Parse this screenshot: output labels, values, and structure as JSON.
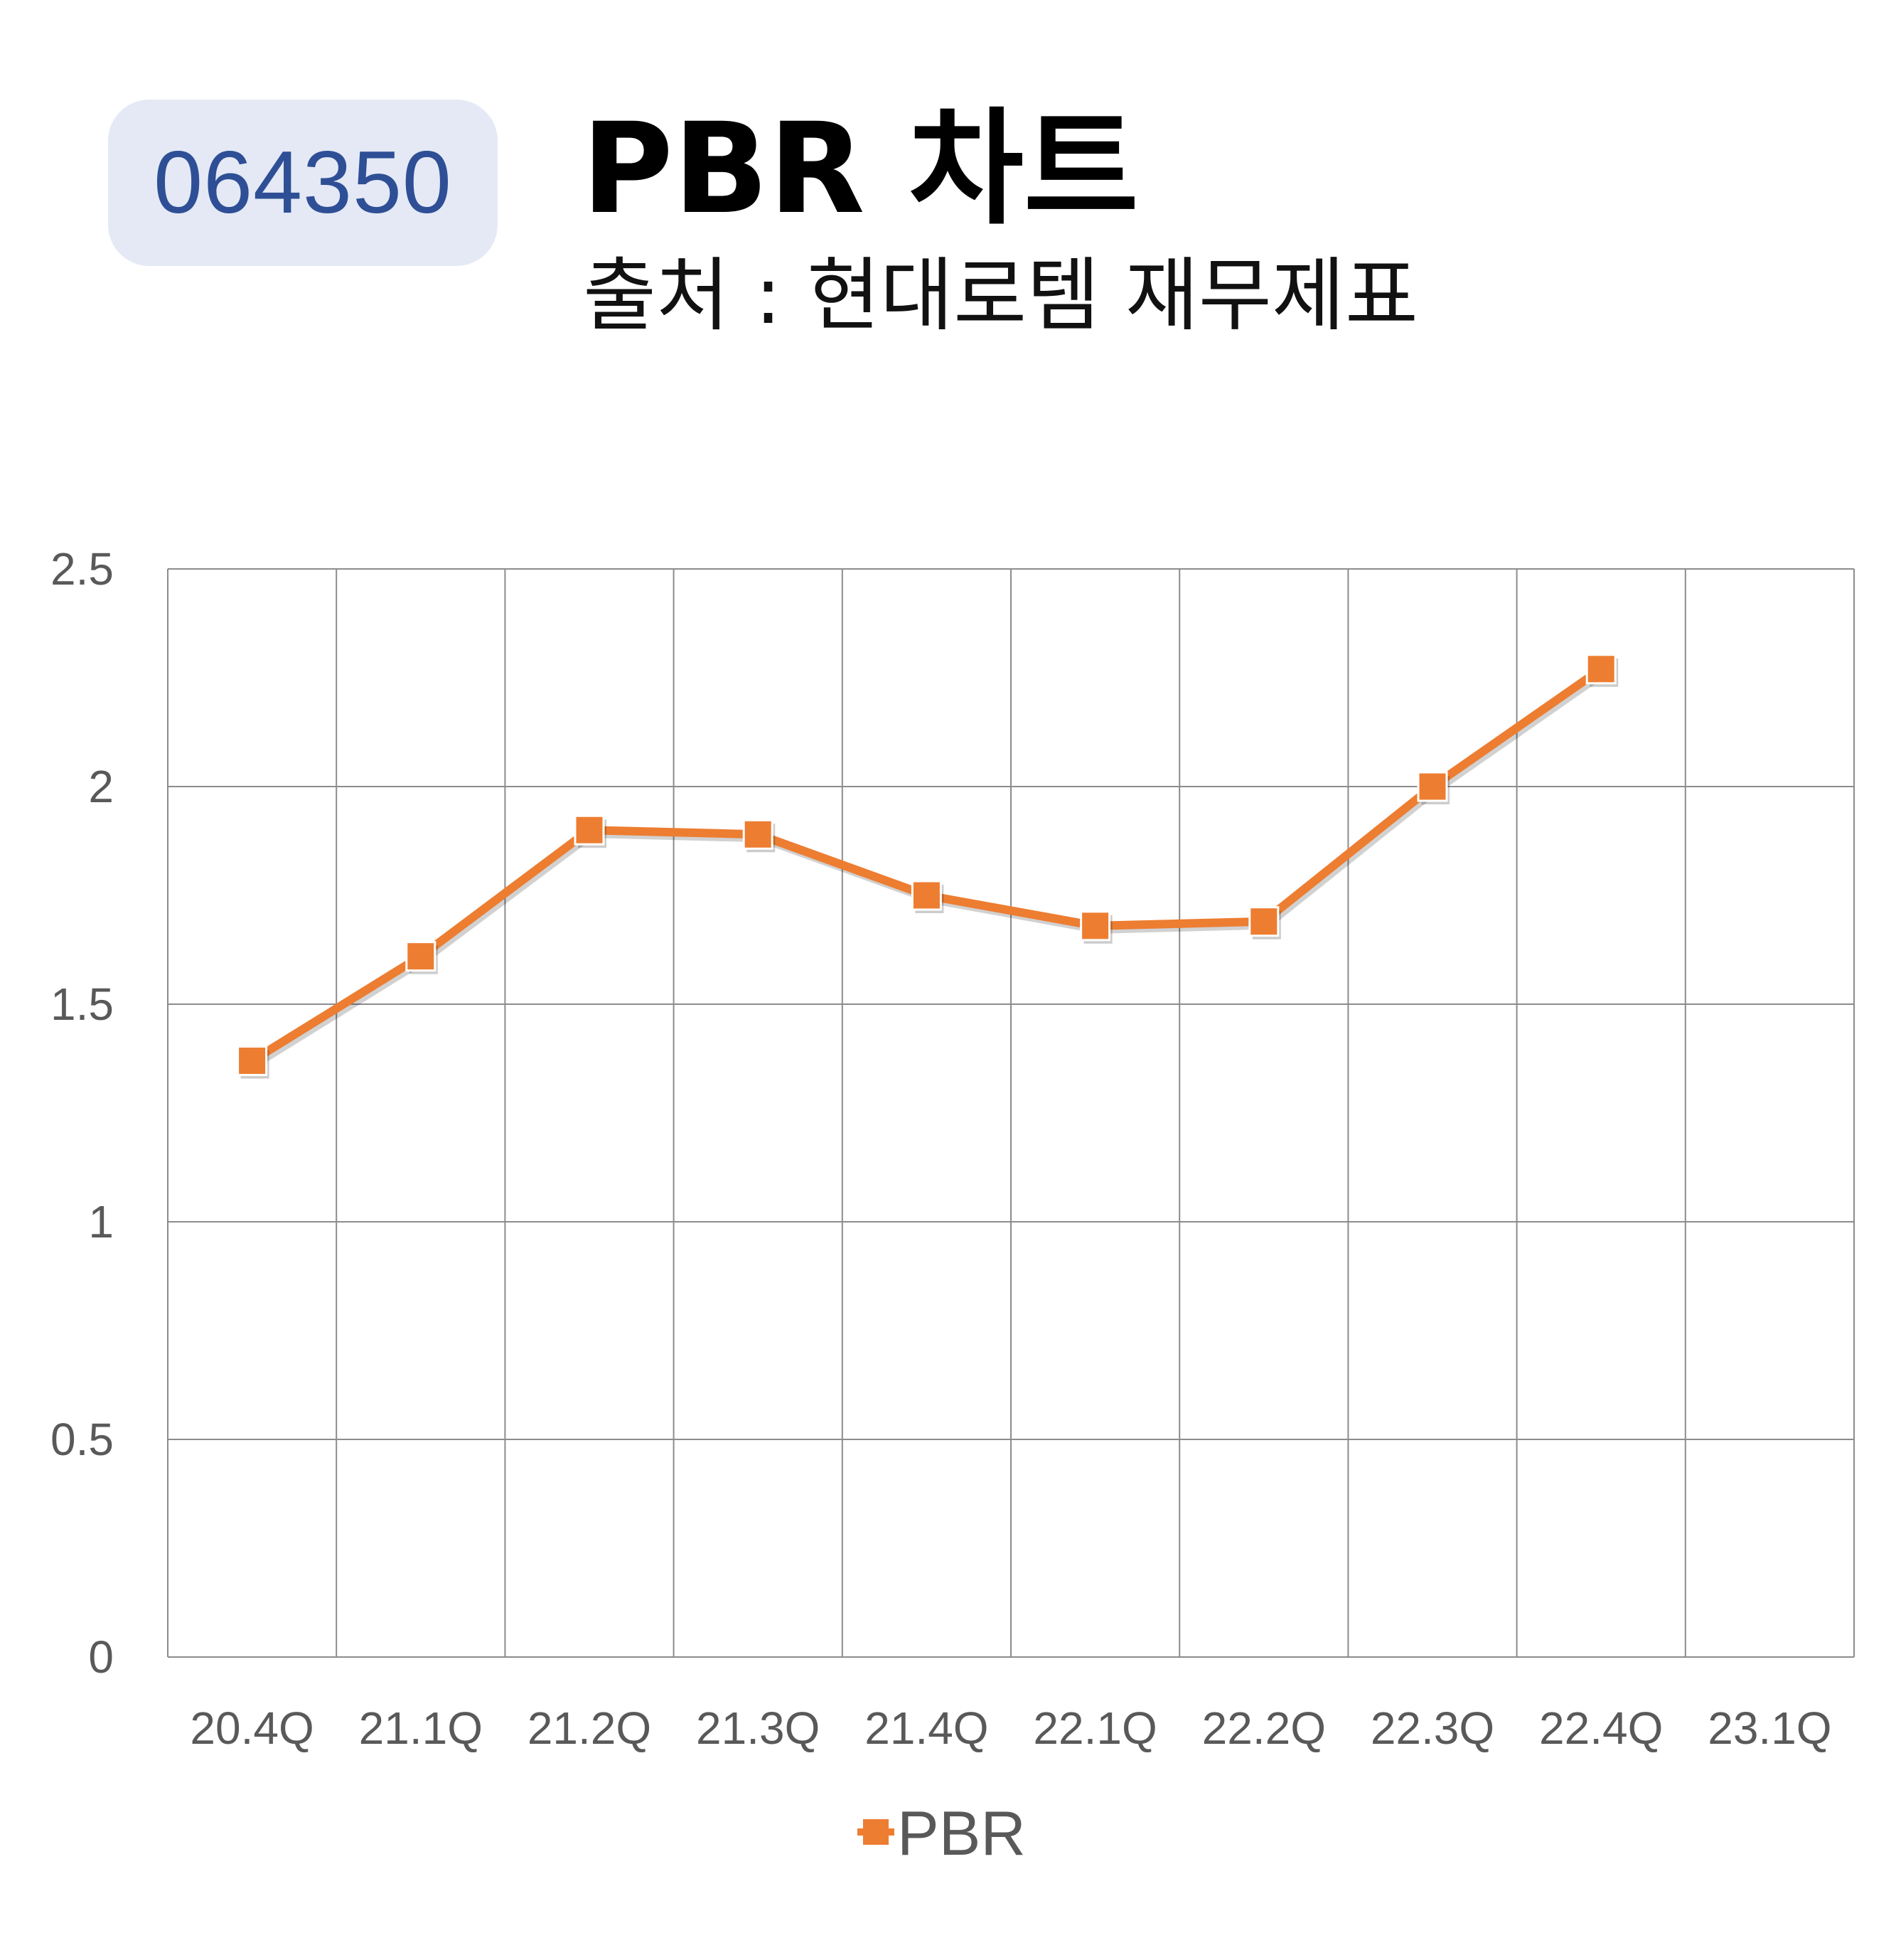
{
  "stock_code": "064350",
  "title": "PBR 차트",
  "subtitle": "출처 : 현대로템 재무제표",
  "chart_data": {
    "type": "line",
    "title": "PBR 차트",
    "xlabel": "",
    "ylabel": "",
    "categories": [
      "20.4Q",
      "21.1Q",
      "21.2Q",
      "21.3Q",
      "21.4Q",
      "22.1Q",
      "22.2Q",
      "22.3Q",
      "22.4Q",
      "23.1Q"
    ],
    "series": [
      {
        "name": "PBR",
        "values": [
          1.37,
          1.61,
          1.9,
          1.89,
          1.75,
          1.68,
          1.69,
          2.0,
          2.27,
          null
        ],
        "color": "#ed7d31",
        "marker": "square"
      }
    ],
    "ylim": [
      0,
      2.5
    ],
    "yticks": [
      "0",
      "0.5",
      "1",
      "1.5",
      "2",
      "2.5"
    ],
    "grid": true,
    "legend": "bottom-center"
  }
}
